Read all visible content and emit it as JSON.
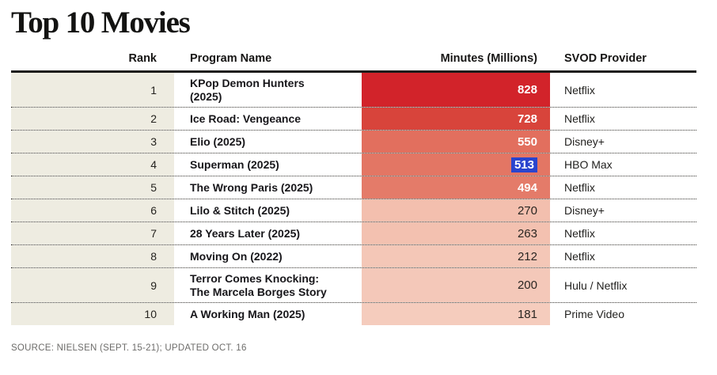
{
  "title": "Top 10 Movies",
  "footer": "SOURCE: NIELSEN (SEPT. 15-21); UPDATED OCT. 16",
  "selection": {
    "value": "513",
    "color": "#2944ce"
  },
  "colors": {
    "rank_column_bg": "#eeece1",
    "header_rule": "#1d1c1a",
    "max_heat": "#d2232a",
    "min_heat": "#f5ccbd"
  },
  "table": {
    "headers": {
      "rank": "Rank",
      "name": "Program Name",
      "minutes": "Minutes (Millions)",
      "provider": "SVOD Provider"
    },
    "rows": [
      {
        "rank": "1",
        "name": "KPop Demon Hunters (2025)",
        "minutes": "828",
        "provider": "Netflix",
        "cell_color": "#d2232a",
        "text": "light",
        "selected": false
      },
      {
        "rank": "2",
        "name": "Ice Road: Vengeance",
        "minutes": "728",
        "provider": "Netflix",
        "cell_color": "#d8443b",
        "text": "light",
        "selected": false
      },
      {
        "rank": "3",
        "name": "Elio (2025)",
        "minutes": "550",
        "provider": "Disney+",
        "cell_color": "#e26f5e",
        "text": "light",
        "selected": false
      },
      {
        "rank": "4",
        "name": "Superman (2025)",
        "minutes": "513",
        "provider": "HBO Max",
        "cell_color": "#e37664",
        "text": "light",
        "selected": true
      },
      {
        "rank": "5",
        "name": "The Wrong Paris (2025)",
        "minutes": "494",
        "provider": "Netflix",
        "cell_color": "#e47b69",
        "text": "light",
        "selected": false
      },
      {
        "rank": "6",
        "name": "Lilo & Stitch (2025)",
        "minutes": "270",
        "provider": "Disney+",
        "cell_color": "#f3bfae",
        "text": "dark",
        "selected": false
      },
      {
        "rank": "7",
        "name": "28 Years Later (2025)",
        "minutes": "263",
        "provider": "Netflix",
        "cell_color": "#f3c1b0",
        "text": "dark",
        "selected": false
      },
      {
        "rank": "8",
        "name": "Moving On (2022)",
        "minutes": "212",
        "provider": "Netflix",
        "cell_color": "#f4c7b7",
        "text": "dark",
        "selected": false
      },
      {
        "rank": "9",
        "name": "Terror Comes Knocking: The Marcela Borges Story",
        "minutes": "200",
        "provider": "Hulu / Netflix",
        "cell_color": "#f4c8b9",
        "text": "dark",
        "selected": false
      },
      {
        "rank": "10",
        "name": "A Working Man (2025)",
        "minutes": "181",
        "provider": "Prime Video",
        "cell_color": "#f5ccbd",
        "text": "dark",
        "selected": false
      }
    ]
  },
  "chart_data": {
    "type": "table",
    "title": "Top 10 Movies",
    "columns": [
      "Rank",
      "Program Name",
      "Minutes (Millions)",
      "SVOD Provider"
    ],
    "rows": [
      [
        1,
        "KPop Demon Hunters (2025)",
        828,
        "Netflix"
      ],
      [
        2,
        "Ice Road: Vengeance",
        728,
        "Netflix"
      ],
      [
        3,
        "Elio (2025)",
        550,
        "Disney+"
      ],
      [
        4,
        "Superman (2025)",
        513,
        "HBO Max"
      ],
      [
        5,
        "The Wrong Paris (2025)",
        494,
        "Netflix"
      ],
      [
        6,
        "Lilo & Stitch (2025)",
        270,
        "Disney+"
      ],
      [
        7,
        "28 Years Later (2025)",
        263,
        "Netflix"
      ],
      [
        8,
        "Moving On (2022)",
        212,
        "Netflix"
      ],
      [
        9,
        "Terror Comes Knocking: The Marcela Borges Story",
        200,
        "Hulu / Netflix"
      ],
      [
        10,
        "A Working Man (2025)",
        181,
        "Prime Video"
      ]
    ],
    "value_encoding": "Minutes column cells shaded from deep red (highest) to pale pink (lowest)",
    "annotations": [
      "Value 513 shown with blue text-selection highlight"
    ],
    "source": "SOURCE: NIELSEN (SEPT. 15-21); UPDATED OCT. 16"
  }
}
